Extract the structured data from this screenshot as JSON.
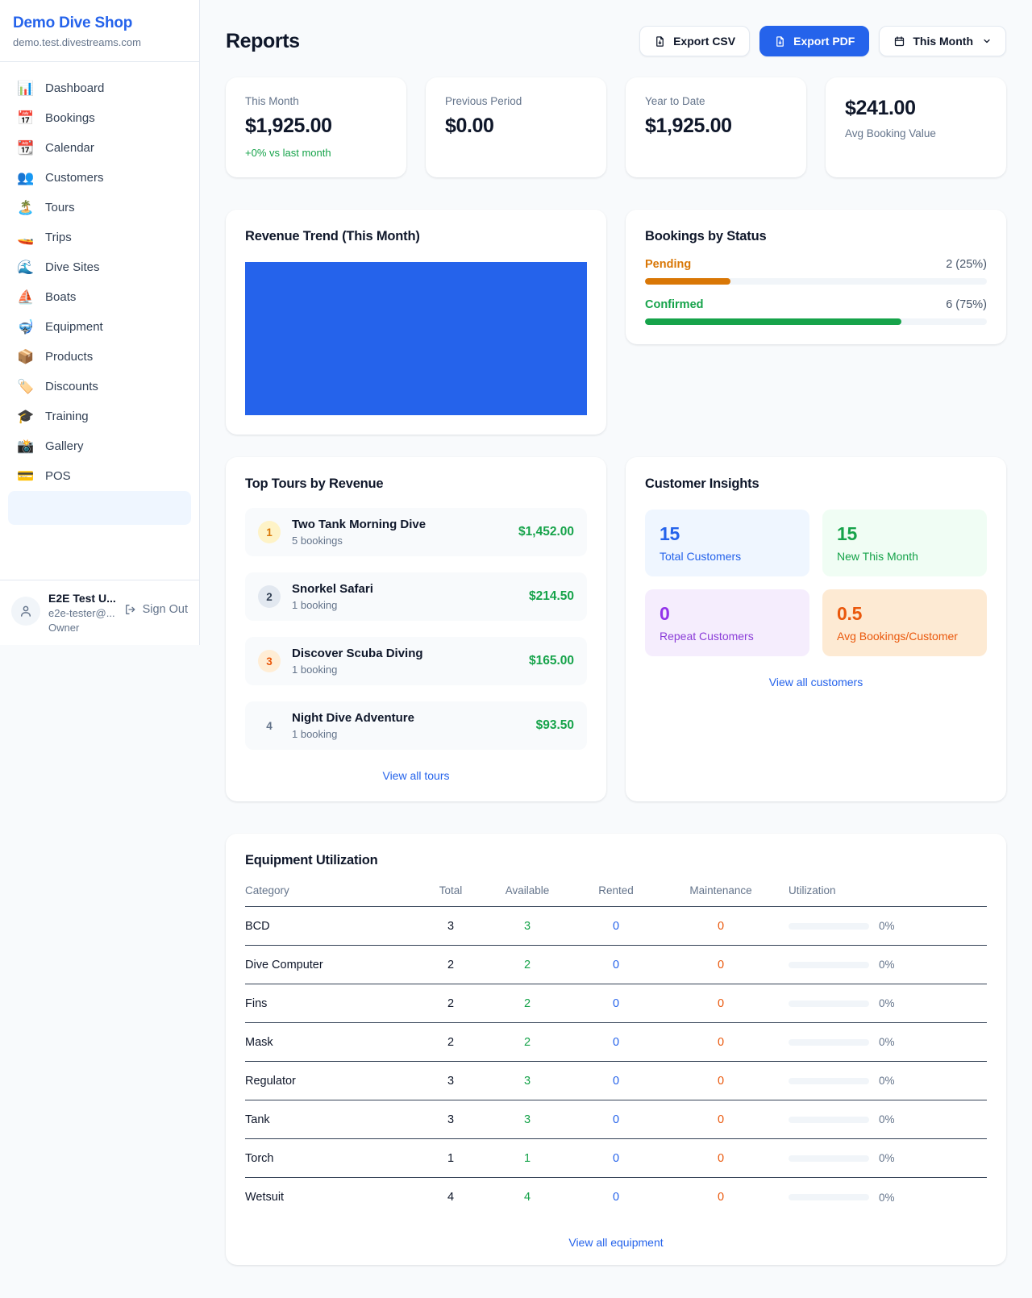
{
  "app": {
    "name": "Demo Dive Shop",
    "domain": "demo.test.divestreams.com"
  },
  "sidebar": {
    "items": [
      {
        "label": "Dashboard",
        "icon": "📊"
      },
      {
        "label": "Bookings",
        "icon": "📅"
      },
      {
        "label": "Calendar",
        "icon": "📆"
      },
      {
        "label": "Customers",
        "icon": "👥"
      },
      {
        "label": "Tours",
        "icon": "🏝️"
      },
      {
        "label": "Trips",
        "icon": "🚤"
      },
      {
        "label": "Dive Sites",
        "icon": "🌊"
      },
      {
        "label": "Boats",
        "icon": "⛵"
      },
      {
        "label": "Equipment",
        "icon": "🤿"
      },
      {
        "label": "Products",
        "icon": "📦"
      },
      {
        "label": "Discounts",
        "icon": "🏷️"
      },
      {
        "label": "Training",
        "icon": "🎓"
      },
      {
        "label": "Gallery",
        "icon": "📸"
      },
      {
        "label": "POS",
        "icon": "💳"
      }
    ],
    "user": {
      "name": "E2E Test U...",
      "email": "e2e-tester@...",
      "role": "Owner",
      "sign_out_label": "Sign Out"
    }
  },
  "header": {
    "title": "Reports",
    "export_csv_label": "Export CSV",
    "export_pdf_label": "Export PDF",
    "period_selector_label": "This Month"
  },
  "stats": [
    {
      "label": "This Month",
      "value": "$1,925.00",
      "delta": "+0% vs last month"
    },
    {
      "label": "Previous Period",
      "value": "$0.00"
    },
    {
      "label": "Year to Date",
      "value": "$1,925.00"
    },
    {
      "label": "Avg Booking Value",
      "value": "$241.00"
    }
  ],
  "revenue_trend": {
    "title": "Revenue Trend (This Month)"
  },
  "bookings_by_status": {
    "title": "Bookings by Status",
    "statuses": [
      {
        "label": "Pending",
        "value_text": "2 (25%)",
        "count": 2,
        "pct": 25,
        "color": "#d97706"
      },
      {
        "label": "Confirmed",
        "value_text": "6 (75%)",
        "count": 6,
        "pct": 75,
        "color": "#16a34a"
      }
    ]
  },
  "top_tours": {
    "title": "Top Tours by Revenue",
    "rows": [
      {
        "rank": "1",
        "name": "Two Tank Morning Dive",
        "bookings": "5 bookings",
        "revenue": "$1,452.00"
      },
      {
        "rank": "2",
        "name": "Snorkel Safari",
        "bookings": "1 booking",
        "revenue": "$214.50"
      },
      {
        "rank": "3",
        "name": "Discover Scuba Diving",
        "bookings": "1 booking",
        "revenue": "$165.00"
      },
      {
        "rank": "4",
        "name": "Night Dive Adventure",
        "bookings": "1 booking",
        "revenue": "$93.50"
      }
    ],
    "view_all_label": "View all tours"
  },
  "customer_insights": {
    "title": "Customer Insights",
    "tiles": [
      {
        "value": "15",
        "label": "Total Customers",
        "color": "#2563eb",
        "bg": "#eff6ff"
      },
      {
        "value": "15",
        "label": "New This Month",
        "color": "#16a34a",
        "bg": "#f0fdf4"
      },
      {
        "value": "0",
        "label": "Repeat Customers",
        "color": "#9333ea",
        "bg": "#f5edfd"
      },
      {
        "value": "0.5",
        "label": "Avg Bookings/Customer",
        "color": "#ea580c",
        "bg": "#fdead3"
      }
    ],
    "view_all_label": "View all customers"
  },
  "equipment": {
    "title": "Equipment Utilization",
    "columns": {
      "category": "Category",
      "total": "Total",
      "available": "Available",
      "rented": "Rented",
      "maintenance": "Maintenance",
      "utilization": "Utilization"
    },
    "rows": [
      {
        "category": "BCD",
        "total": "3",
        "available": "3",
        "rented": "0",
        "maintenance": "0",
        "utilization_pct": 0,
        "utilization": "0%"
      },
      {
        "category": "Dive Computer",
        "total": "2",
        "available": "2",
        "rented": "0",
        "maintenance": "0",
        "utilization_pct": 0,
        "utilization": "0%"
      },
      {
        "category": "Fins",
        "total": "2",
        "available": "2",
        "rented": "0",
        "maintenance": "0",
        "utilization_pct": 0,
        "utilization": "0%"
      },
      {
        "category": "Mask",
        "total": "2",
        "available": "2",
        "rented": "0",
        "maintenance": "0",
        "utilization_pct": 0,
        "utilization": "0%"
      },
      {
        "category": "Regulator",
        "total": "3",
        "available": "3",
        "rented": "0",
        "maintenance": "0",
        "utilization_pct": 0,
        "utilization": "0%"
      },
      {
        "category": "Tank",
        "total": "3",
        "available": "3",
        "rented": "0",
        "maintenance": "0",
        "utilization_pct": 0,
        "utilization": "0%"
      },
      {
        "category": "Torch",
        "total": "1",
        "available": "1",
        "rented": "0",
        "maintenance": "0",
        "utilization_pct": 0,
        "utilization": "0%"
      },
      {
        "category": "Wetsuit",
        "total": "4",
        "available": "4",
        "rented": "0",
        "maintenance": "0",
        "utilization_pct": 0,
        "utilization": "0%"
      }
    ],
    "view_all_label": "View all equipment"
  },
  "chart_data": [
    {
      "type": "bar",
      "title": "Revenue Trend (This Month)",
      "categories": [
        "This Month"
      ],
      "values": [
        1925
      ],
      "note": "single solid blue bar filling the entire plot area; no axes, ticks or labels shown",
      "color": "#2563eb"
    },
    {
      "type": "bar",
      "orientation": "horizontal",
      "title": "Bookings by Status",
      "categories": [
        "Pending",
        "Confirmed"
      ],
      "values": [
        2,
        6
      ],
      "percentages": [
        25,
        75
      ],
      "colors": [
        "#d97706",
        "#16a34a"
      ],
      "xlim": [
        0,
        100
      ]
    }
  ],
  "colors": {
    "accent_blue": "#2563eb",
    "green": "#16a34a",
    "amber": "#d97706",
    "deep_orange": "#ea580c",
    "purple": "#9333ea",
    "page_bg": "#f8fafc"
  }
}
